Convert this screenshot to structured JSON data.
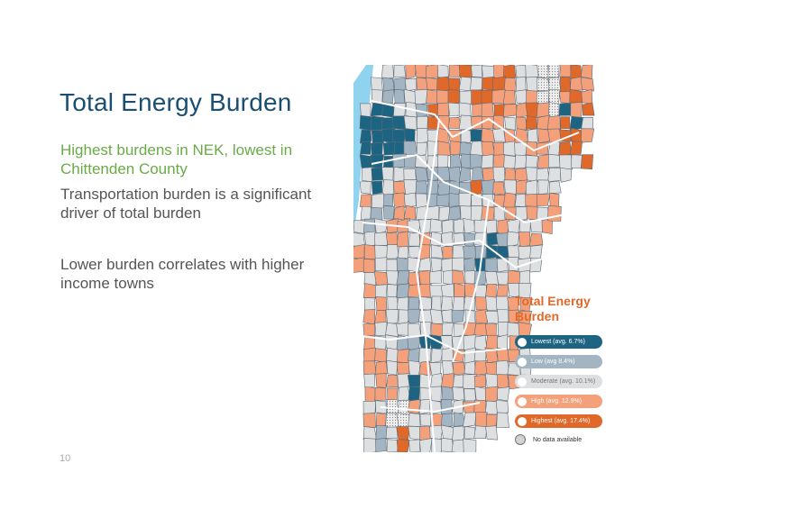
{
  "slide": {
    "title": "Total Energy Burden",
    "subtitle": "Highest burdens in NEK, lowest in Chittenden County",
    "body_points": [
      "Transportation burden is a significant driver of total burden",
      "Lower burden correlates with higher income towns"
    ],
    "page_number": "10"
  },
  "legend": {
    "title": "Total Energy Burden",
    "items": [
      {
        "label": "Lowest (avg. 6.7%)",
        "color": "#1d6482"
      },
      {
        "label": "Low (avg 8.4%)",
        "color": "#a3b4c2"
      },
      {
        "label": "Moderate (avg. 10.1%)",
        "color": "#dddfe1",
        "text_color": "#777777"
      },
      {
        "label": "High (avg. 12.9%)",
        "color": "#f4a07a"
      },
      {
        "label": "Highest (avg. 17.4%)",
        "color": "#e0692a"
      }
    ],
    "no_data_label": "No data available"
  },
  "map": {
    "colors": {
      "L": "#1d6482",
      "W": "#a3b4c2",
      "M": "#dddfe1",
      "H": "#f4a07a",
      "X": "#e0692a",
      "N": "#eeeeee",
      "lake": "#8fd3ef"
    },
    "grid": [
      "..MMHHHMHXMMHXMMNNHXH.",
      ".MWWMHHXXMMXXHMMNNXHH.",
      ".MWWMMHHXMXXHHMHNNHXH.",
      "MLLMMWXHMMHHXHHXHNLHX.",
      "LLLLMMXHHMHHHMHXHHXLM.",
      "LLLLLMMHHMLHMHHMHHXXH.",
      "LLLLWMMHHWMHHMMHHMXX..",
      "LLLWWMMMWWWMHMMMHMMMX.",
      "MLMMMWWWWWWHMHHMMMM...",
      "MLMHMWWWWWXWHMHMMM....",
      "HMWHMMWWWMMMHHMHHH....",
      "MWWHHMMMWMMHMHMHMH....",
      "MWMHHMMMMMMMMHMMMH....",
      "MMMHHMHMMMWMLWMHH.....",
      "HHMMMMHMHMWWLLMMM.....",
      "HHMMWMMMMMWLWMMMM.....",
      ".MHMWHHMMHMWMMHM......",
      ".HMMWHHMMHHMHHMM......",
      ".MHMMWMMMMMHMMHH......",
      ".HHMMWMMMWMHMMHH......",
      ".HMMMMMHMMHHHMMH......",
      ".HMMWWLLMMMMHMHH......",
      ".HHMHWMMMHMMHHHM......",
      ".HHMHMHMMHMHHMMM......",
      ".MHHMLMMHMMHMHH.......",
      ".HHHMLMMWMMMHM........",
      ".MMNNHMMWMHHMM........",
      ".HHNNMMHWWMHHM........",
      ".MWMXMHMMMMMM.........",
      ".MWMXMMMMMM..........."
    ]
  }
}
